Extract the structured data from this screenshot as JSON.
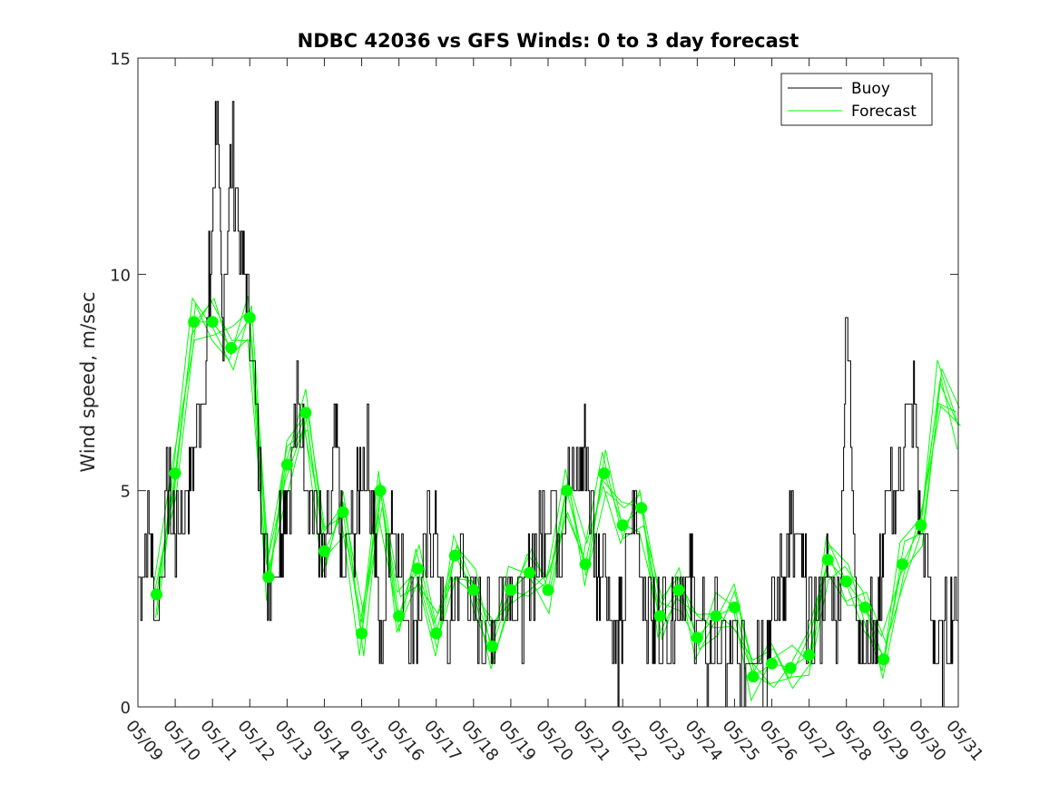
{
  "chart_data": {
    "type": "line",
    "title": "NDBC 42036 vs GFS Winds: 0 to 3 day forecast",
    "xlabel": "",
    "ylabel": "Wind speed, m/sec",
    "xlim": [
      0,
      22
    ],
    "ylim": [
      0,
      15
    ],
    "x_tick_labels": [
      "05/09",
      "05/10",
      "05/11",
      "05/12",
      "05/13",
      "05/14",
      "05/15",
      "05/16",
      "05/17",
      "05/18",
      "05/19",
      "05/20",
      "05/21",
      "05/22",
      "05/23",
      "05/24",
      "05/25",
      "05/26",
      "05/27",
      "05/28",
      "05/29",
      "05/30",
      "05/31"
    ],
    "y_ticks": [
      0,
      5,
      10,
      15
    ],
    "y_tick_labels": [
      "0",
      "5",
      "10",
      "15"
    ],
    "legend_position": "top-right",
    "colors": {
      "buoy": "#000000",
      "forecast": "#00ff00",
      "markers": "#00ff00"
    },
    "buoy": {
      "name": "Buoy",
      "x": [
        0,
        0.3,
        0.5,
        0.8,
        1.0,
        1.3,
        1.5,
        1.8,
        2.0,
        2.1,
        2.25,
        2.5,
        2.8,
        3.0,
        3.3,
        3.5,
        3.8,
        4.0,
        4.3,
        4.5,
        4.8,
        5.0,
        5.3,
        5.5,
        5.8,
        6.0,
        6.3,
        6.5,
        6.8,
        7.0,
        7.3,
        7.5,
        7.8,
        8.0,
        8.3,
        8.5,
        8.8,
        9.0,
        9.3,
        9.5,
        9.8,
        10.0,
        10.3,
        10.5,
        10.8,
        11.0,
        11.3,
        11.5,
        11.8,
        12.0,
        12.3,
        12.5,
        12.8,
        13.0,
        13.3,
        13.5,
        13.8,
        14.0,
        14.3,
        14.5,
        14.8,
        15.0,
        15.3,
        15.5,
        15.8,
        16.0,
        16.3,
        16.5,
        16.8,
        17.0,
        17.3,
        17.5,
        17.8,
        18.0,
        18.3,
        18.5,
        18.8,
        19.0,
        19.3,
        19.5,
        19.8,
        19.95,
        20.0,
        20.3,
        20.5,
        20.8,
        21.0,
        21.3,
        21.5,
        21.8,
        22.0
      ],
      "values": [
        3,
        4,
        2,
        5,
        4,
        5,
        6,
        8,
        11,
        14,
        9,
        13,
        10,
        9,
        5,
        3,
        4,
        5,
        7,
        6,
        4,
        3,
        6,
        3,
        4,
        6,
        5,
        1,
        5,
        3,
        2,
        2,
        4,
        4,
        1,
        3,
        3,
        2,
        2,
        2,
        3,
        3,
        2,
        3,
        4,
        5,
        4,
        5,
        5,
        6,
        3,
        4,
        1,
        2,
        5,
        3,
        2,
        2,
        2,
        3,
        3,
        2,
        1,
        2,
        1,
        1,
        1,
        2,
        1,
        2,
        3,
        4,
        3,
        2,
        2,
        3,
        2,
        9,
        2,
        1,
        2,
        3,
        4,
        5,
        6,
        7,
        4,
        2,
        1,
        2,
        3
      ],
      "note": "approximate envelope of a noisy buoy trace"
    },
    "forecast": {
      "name": "Forecast",
      "x": [
        0.5,
        1,
        1.5,
        2,
        2.5,
        3,
        3.5,
        4,
        4.5,
        5,
        5.5,
        6,
        6.5,
        7,
        7.5,
        8,
        8.5,
        9,
        9.5,
        10,
        10.5,
        11,
        11.5,
        12,
        12.5,
        13,
        13.5,
        14,
        14.5,
        15,
        15.5,
        16,
        16.5,
        17,
        17.5,
        18,
        18.5,
        19,
        19.5,
        20,
        20.5,
        21,
        21.5,
        22
      ],
      "values": [
        2.6,
        5.4,
        8.9,
        8.9,
        8.3,
        9.0,
        3.0,
        5.6,
        6.8,
        3.6,
        4.5,
        1.7,
        5.0,
        2.1,
        3.2,
        1.7,
        3.5,
        2.7,
        1.4,
        2.7,
        3.1,
        2.7,
        5.0,
        3.3,
        5.4,
        4.2,
        4.6,
        2.1,
        2.7,
        1.6,
        2.1,
        2.3,
        0.7,
        1.0,
        0.9,
        1.2,
        3.4,
        2.9,
        2.3,
        1.1,
        3.3,
        4.2,
        7.5,
        6.5
      ]
    },
    "markers": {
      "x": [
        0.5,
        1,
        1.5,
        2,
        2.5,
        3,
        3.5,
        4,
        4.5,
        5,
        5.5,
        6,
        6.5,
        7,
        7.5,
        8,
        8.5,
        9,
        9.5,
        10,
        10.5,
        11,
        11.5,
        12,
        12.5,
        13,
        13.5,
        14,
        14.5,
        15,
        15.5,
        16,
        16.5,
        17,
        17.5,
        18,
        18.5,
        19,
        19.5,
        20,
        20.5,
        21
      ],
      "values": [
        2.6,
        5.4,
        8.9,
        8.9,
        8.3,
        9.0,
        3.0,
        5.6,
        6.8,
        3.6,
        4.5,
        1.7,
        5.0,
        2.1,
        3.2,
        1.7,
        3.5,
        2.7,
        1.4,
        2.7,
        3.1,
        2.7,
        5.0,
        3.3,
        5.4,
        4.2,
        4.6,
        2.1,
        2.7,
        1.6,
        2.1,
        2.3,
        0.7,
        1.0,
        0.9,
        1.2,
        3.4,
        2.9,
        2.3,
        1.1,
        3.3,
        4.2
      ]
    }
  },
  "legend": {
    "buoy_label": "Buoy",
    "forecast_label": "Forecast"
  }
}
